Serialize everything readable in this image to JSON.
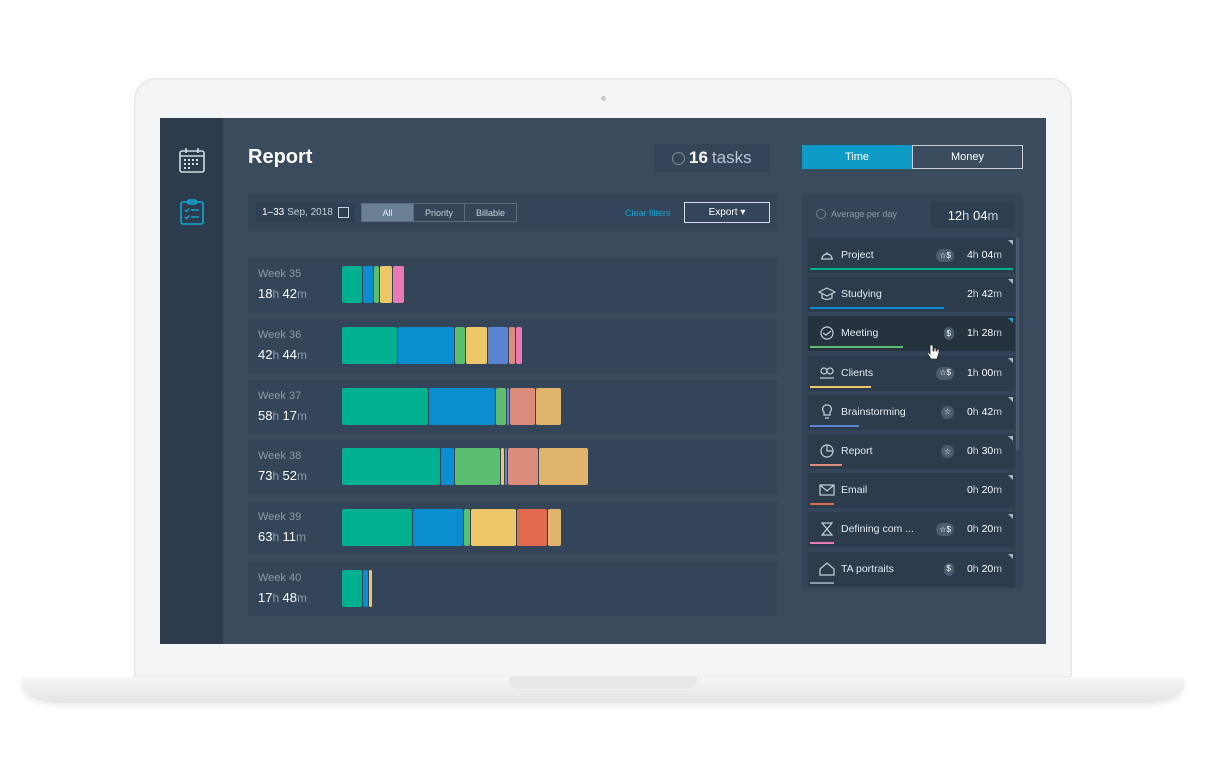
{
  "header": {
    "title": "Report",
    "tasks_count": "16",
    "tasks_label": "tasks"
  },
  "view_toggle": {
    "time_label": "Time",
    "money_label": "Money",
    "active": "Time"
  },
  "filters": {
    "date_range_bold": "1–33",
    "date_range_rest": "Sep, 2018",
    "segments": [
      "All",
      "Priority",
      "Billable"
    ],
    "active_segment": "All",
    "clear_label": "Clear filters",
    "export_label": "Export ▾"
  },
  "weeks": [
    {
      "label": "Week 35",
      "hours": "18",
      "minutes": "42",
      "segments": [
        {
          "value": 3.6,
          "color": "#00b08e"
        },
        {
          "value": 2.0,
          "color": "#0a8ecf"
        },
        {
          "value": 1.0,
          "color": "#5bbf6f"
        },
        {
          "value": 2.2,
          "color": "#eec76b"
        },
        {
          "value": 2.1,
          "color": "#ea79b6"
        }
      ]
    },
    {
      "label": "Week 36",
      "hours": "42",
      "minutes": "44",
      "segments": [
        {
          "value": 9.7,
          "color": "#00b08e"
        },
        {
          "value": 9.9,
          "color": "#0a8ecf"
        },
        {
          "value": 1.9,
          "color": "#5bbf6f"
        },
        {
          "value": 3.8,
          "color": "#eec76b"
        },
        {
          "value": 3.6,
          "color": "#5b84d1"
        },
        {
          "value": 1.2,
          "color": "#db8c7b"
        },
        {
          "value": 1.2,
          "color": "#ea79b6"
        }
      ]
    },
    {
      "label": "Week 37",
      "hours": "58",
      "minutes": "17",
      "segments": [
        {
          "value": 15.0,
          "color": "#00b08e"
        },
        {
          "value": 11.7,
          "color": "#0a8ecf"
        },
        {
          "value": 1.8,
          "color": "#5bbf6f"
        },
        {
          "value": 0.3,
          "color": "#5b84d1"
        },
        {
          "value": 4.6,
          "color": "#db8c7b"
        },
        {
          "value": 4.4,
          "color": "#e0b46d"
        }
      ]
    },
    {
      "label": "Week 38",
      "hours": "73",
      "minutes": "52",
      "segments": [
        {
          "value": 17.1,
          "color": "#00b08e"
        },
        {
          "value": 2.4,
          "color": "#0a8ecf"
        },
        {
          "value": 8.0,
          "color": "#5bbf6f"
        },
        {
          "value": 0.7,
          "color": "#eec76b"
        },
        {
          "value": 0.5,
          "color": "#5b84d1"
        },
        {
          "value": 5.3,
          "color": "#db8c7b"
        },
        {
          "value": 8.7,
          "color": "#e0b46d"
        }
      ]
    },
    {
      "label": "Week 39",
      "hours": "63",
      "minutes": "11",
      "segments": [
        {
          "value": 12.3,
          "color": "#00b08e"
        },
        {
          "value": 8.9,
          "color": "#0a8ecf"
        },
        {
          "value": 1.1,
          "color": "#5bbf6f"
        },
        {
          "value": 8.0,
          "color": "#eec76b"
        },
        {
          "value": 5.4,
          "color": "#e0694e"
        },
        {
          "value": 2.4,
          "color": "#e0b46d"
        }
      ]
    },
    {
      "label": "Week 40",
      "hours": "17",
      "minutes": "48",
      "segments": [
        {
          "value": 3.6,
          "color": "#00b08e"
        },
        {
          "value": 1.1,
          "color": "#0a8ecf"
        },
        {
          "value": 0.7,
          "color": "#eec76b"
        }
      ]
    }
  ],
  "average": {
    "label": "Average per day",
    "hours": "12",
    "minutes": "04"
  },
  "categories": [
    {
      "name": "Project",
      "icon": "helmet-icon",
      "badges": "☆$",
      "hours": "4",
      "minutes": "04",
      "color": "#00b08e",
      "fill": 1.0
    },
    {
      "name": "Studying",
      "icon": "graduation-cap-icon",
      "badges": "",
      "hours": "2",
      "minutes": "42",
      "color": "#0a8ecf",
      "fill": 0.66
    },
    {
      "name": "Meeting",
      "icon": "handshake-icon",
      "badges": "$",
      "hours": "1",
      "minutes": "28",
      "color": "#5bbf6f",
      "fill": 0.46
    },
    {
      "name": "Clients",
      "icon": "people-icon",
      "badges": "☆$",
      "hours": "1",
      "minutes": "00",
      "color": "#eec76b",
      "fill": 0.3
    },
    {
      "name": "Brainstorming",
      "icon": "lightbulb-icon",
      "badges": "☆",
      "hours": "0",
      "minutes": "42",
      "color": "#5b84d1",
      "fill": 0.24
    },
    {
      "name": "Report",
      "icon": "pie-chart-icon",
      "badges": "☆",
      "hours": "0",
      "minutes": "30",
      "color": "#db8c7b",
      "fill": 0.16
    },
    {
      "name": "Email",
      "icon": "envelope-icon",
      "badges": "",
      "hours": "0",
      "minutes": "20",
      "color": "#e0694e",
      "fill": 0.12
    },
    {
      "name": "Defining com ...",
      "icon": "hourglass-icon",
      "badges": "☆$",
      "hours": "0",
      "minutes": "20",
      "color": "#ea79b6",
      "fill": 0.12
    },
    {
      "name": "TA portraits",
      "icon": "house-icon",
      "badges": "$",
      "hours": "0",
      "minutes": "20",
      "color": "#8c9bab",
      "fill": 0.12
    }
  ],
  "highlighted_category": "Meeting",
  "colors": {
    "accent": "#0f9bc7",
    "background": "#3a4b5e",
    "sidebar": "#2d3c4d"
  }
}
